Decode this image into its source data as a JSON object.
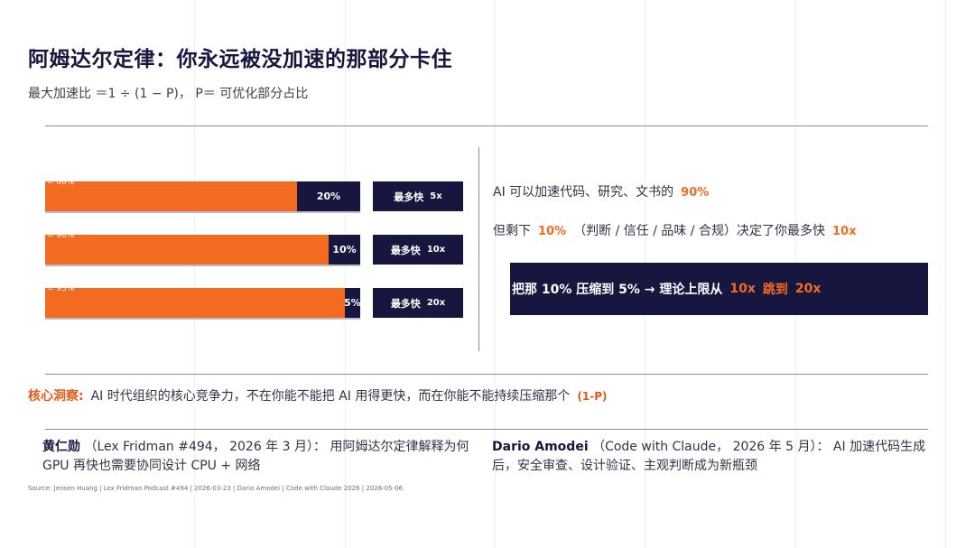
{
  "page": {
    "title": "阿姆达尔定律：你永远被没加速的那部分卡住",
    "subtitle": "最大加速比 ＝1 ÷ (1 − P)， P＝ 可优化部分占比"
  },
  "bars": [
    {
      "label": "= 80%",
      "fraction": 0.8,
      "remainder": "20%",
      "speed_prefix": "最多快",
      "speed": "5x"
    },
    {
      "label": "= 90%",
      "fraction": 0.9,
      "remainder": "10%",
      "speed_prefix": "最多快",
      "speed": "10x"
    },
    {
      "label": "= 95%",
      "fraction": 0.95,
      "remainder": "5%",
      "speed_prefix": "最多快",
      "speed": "20x"
    }
  ],
  "statements": {
    "line1_text": "AI 可以加速代码、研究、文书的",
    "line1_value": "90%",
    "line2_prefix": "但剩下",
    "line2_value": "10%",
    "line2_mid": "（判断 / 信任 / 品味 / 合规）决定了你最多快",
    "line2_speed": "10x"
  },
  "callout": {
    "prefix": "把那 10% 压缩到 5% → 理论上限从",
    "from": "10x",
    "mid": "跳到",
    "to": "20x"
  },
  "insight": {
    "label": "核心洞察:",
    "text": "AI 时代组织的核心竞争力，不在你能不能把 AI 用得更快，而在你能不能持续压缩那个",
    "term": "(1-P)"
  },
  "quotes": [
    {
      "who": "黄仁勋",
      "text": "（Lex Fridman #494， 2026 年 3 月）： 用阿姆达尔定律解释为何 GPU 再快也需要协同设计 CPU + 网络"
    },
    {
      "who": "Dario Amodei",
      "text": "（Code with Claude， 2026 年 5 月）： AI 加速代码生成后，安全审查、设计验证、主观判断成为新瓶颈"
    }
  ],
  "source": "Source: Jensen Huang | Lex Fridman Podcast #494 | 2026-03-23 | Dario Amodei | Code with Claude 2026 | 2026-05-06",
  "colors": {
    "navy": "#16163f",
    "orange": "#f26b21",
    "text": "#2f3448"
  }
}
